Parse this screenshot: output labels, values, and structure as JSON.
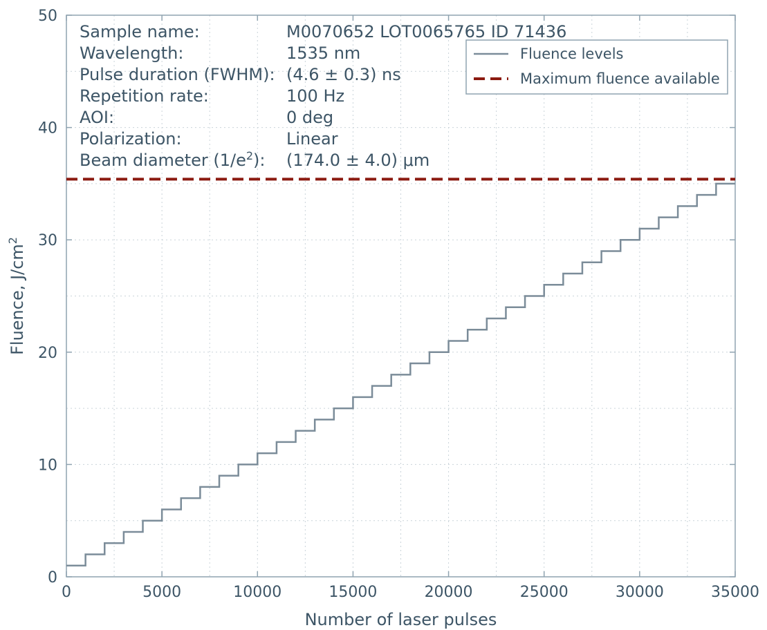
{
  "colors": {
    "axis": "#8fa3b0",
    "text": "#3d5566",
    "grid": "#c9d3d9",
    "fluence_line": "#7b8c99",
    "max_line": "#8b1a10"
  },
  "info": [
    {
      "label": "Sample name:",
      "value": "M0070652 LOT0065765 ID 71436"
    },
    {
      "label": "Wavelength:",
      "value": "1535 nm"
    },
    {
      "label": "Pulse duration (FWHM):",
      "value": "(4.6 ± 0.3) ns"
    },
    {
      "label": "Repetition rate:",
      "value": "100 Hz"
    },
    {
      "label": "AOI:",
      "value": "0 deg"
    },
    {
      "label": "Polarization:",
      "value": "Linear"
    },
    {
      "label": "Beam diameter (1/e",
      "label_sup": "2",
      "label_tail": "):",
      "value": "(174.0 ± 4.0) μm"
    }
  ],
  "chart_data": {
    "type": "line",
    "xlabel": "Number of laser pulses",
    "ylabel": "Fluence, J/cm",
    "ylabel_sup": "2",
    "xlim": [
      0,
      35000
    ],
    "ylim": [
      0,
      50
    ],
    "x_ticks": [
      0,
      5000,
      10000,
      15000,
      20000,
      25000,
      30000,
      35000
    ],
    "y_ticks": [
      0,
      10,
      20,
      30,
      40,
      50
    ],
    "grid": true,
    "legend_position": "top-right",
    "series": [
      {
        "name": "Fluence levels",
        "style": "step",
        "step_width_pulses": 1000,
        "x": [
          0,
          1000,
          2000,
          3000,
          4000,
          5000,
          6000,
          7000,
          8000,
          9000,
          10000,
          11000,
          12000,
          13000,
          14000,
          15000,
          16000,
          17000,
          18000,
          19000,
          20000,
          21000,
          22000,
          23000,
          24000,
          25000,
          26000,
          27000,
          28000,
          29000,
          30000,
          31000,
          32000,
          33000,
          34000
        ],
        "y": [
          1,
          2,
          3,
          4,
          5,
          6,
          7,
          8,
          9,
          10,
          11,
          12,
          13,
          14,
          15,
          16,
          17,
          18,
          19,
          20,
          21,
          22,
          23,
          24,
          25,
          26,
          27,
          28,
          29,
          30,
          31,
          32,
          33,
          34,
          35
        ]
      },
      {
        "name": "Maximum fluence available",
        "style": "dashed",
        "y": 35.4
      }
    ]
  }
}
